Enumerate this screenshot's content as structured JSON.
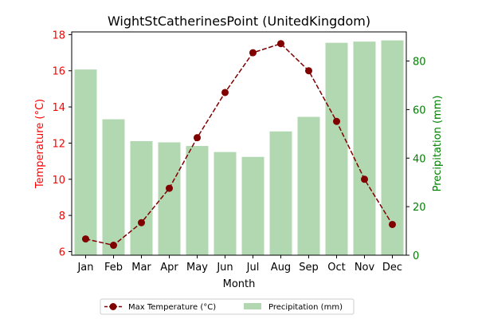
{
  "chart_data": {
    "type": "bar+line",
    "title": "WightStCatherinesPoint (UnitedKingdom)",
    "xlabel": "Month",
    "categories": [
      "Jan",
      "Feb",
      "Mar",
      "Apr",
      "May",
      "Jun",
      "Jul",
      "Aug",
      "Sep",
      "Oct",
      "Nov",
      "Dec"
    ],
    "left_axis": {
      "label": "Temperature (°C)",
      "color": "#ff0000",
      "ylim": [
        5.8,
        18.15
      ],
      "ticks": [
        6,
        8,
        10,
        12,
        14,
        16,
        18
      ]
    },
    "right_axis": {
      "label": "Precipitation (mm)",
      "color": "#008000",
      "ylim": [
        0,
        92
      ],
      "ticks": [
        0,
        20,
        40,
        60,
        80
      ]
    },
    "series": [
      {
        "name": "Max Temperature (°C)",
        "type": "line",
        "axis": "left",
        "color": "#800000",
        "line_style": "dashed",
        "marker": "circle",
        "values": [
          6.7,
          6.35,
          7.6,
          9.5,
          12.3,
          14.8,
          17.0,
          17.5,
          16.0,
          13.2,
          10.0,
          7.5
        ]
      },
      {
        "name": "Precipitation (mm)",
        "type": "bar",
        "axis": "right",
        "color": "#b2d8b2",
        "values": [
          76.5,
          56.0,
          47.0,
          46.5,
          45.0,
          42.5,
          40.5,
          51.0,
          57.0,
          87.5,
          88.0,
          88.5
        ]
      }
    ],
    "legend_position": "bottom-center",
    "grid": false
  }
}
